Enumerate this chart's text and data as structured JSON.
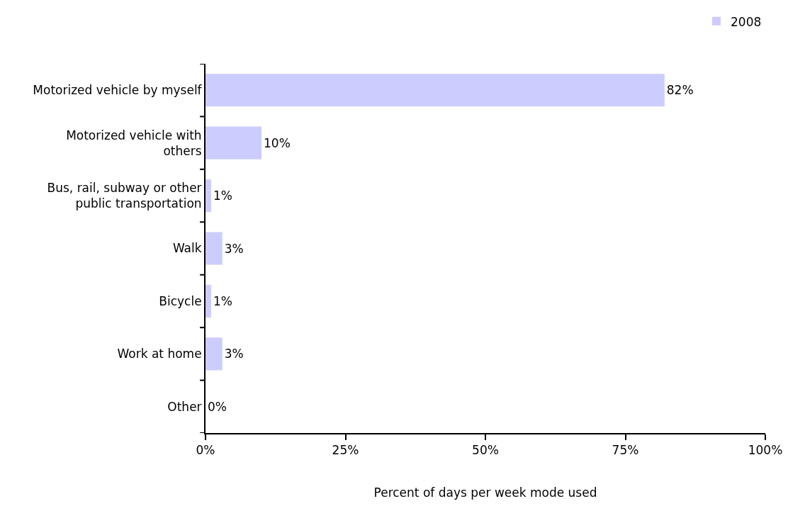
{
  "chart_data": {
    "type": "bar",
    "orientation": "horizontal",
    "xlabel": "Percent of days per week mode used",
    "categories": [
      "Motorized vehicle by myself",
      "Motorized vehicle with others",
      "Bus, rail, subway or other public transportation",
      "Walk",
      "Bicycle",
      "Work at home",
      "Other"
    ],
    "series": [
      {
        "name": "2008",
        "color": "#ccccff",
        "values": [
          82,
          10,
          1,
          3,
          1,
          3,
          0
        ],
        "value_labels": [
          "82%",
          "10%",
          "1%",
          "3%",
          "1%",
          "3%",
          "0%"
        ]
      }
    ],
    "xlim": [
      0,
      100
    ],
    "xticks": [
      {
        "value": 0,
        "label": "0%"
      },
      {
        "value": 25,
        "label": "25%"
      },
      {
        "value": 50,
        "label": "50%"
      },
      {
        "value": 75,
        "label": "75%"
      },
      {
        "value": 100,
        "label": "100%"
      }
    ],
    "grid": false,
    "legend": "top right"
  }
}
